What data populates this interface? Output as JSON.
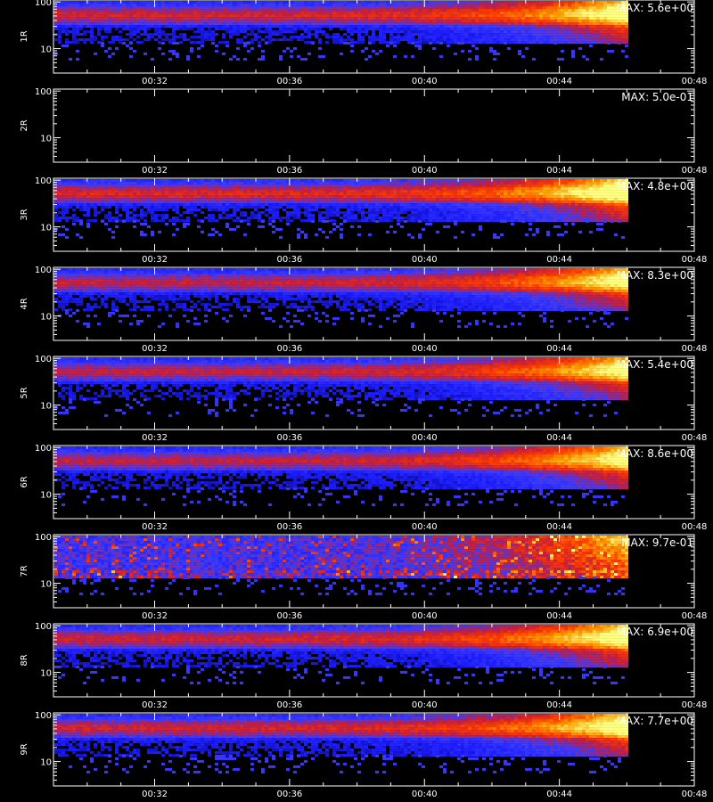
{
  "chart_data": {
    "type": "heatmap",
    "x_tick_labels": [
      "00:32",
      "00:36",
      "00:40",
      "00:44",
      "00:48"
    ],
    "x_range_minutes": [
      29,
      48
    ],
    "data_end_minutes": 46,
    "y_tick_labels": [
      "10",
      "100"
    ],
    "y_scale": "log",
    "y_range": [
      3,
      110
    ],
    "xlabel": "",
    "colormap": [
      "#000000",
      "#1a1aff",
      "#3c3cff",
      "#c81e3c",
      "#ff3c00",
      "#ffa000",
      "#ffff80"
    ],
    "panels": [
      {
        "channel": "1R",
        "max_label": "MAX: 5.6e+00",
        "empty": false,
        "intensity": 0.95
      },
      {
        "channel": "2R",
        "max_label": "MAX: 5.0e-01",
        "empty": true,
        "intensity": 0.0
      },
      {
        "channel": "3R",
        "max_label": "MAX: 4.8e+00",
        "empty": false,
        "intensity": 1.0
      },
      {
        "channel": "4R",
        "max_label": "MAX: 8.3e+00",
        "empty": false,
        "intensity": 0.9
      },
      {
        "channel": "5R",
        "max_label": "MAX: 5.4e+00",
        "empty": false,
        "intensity": 0.9
      },
      {
        "channel": "6R",
        "max_label": "MAX: 8.6e+00",
        "empty": false,
        "intensity": 0.9
      },
      {
        "channel": "7R",
        "max_label": "MAX: 9.7e-01",
        "empty": false,
        "intensity": 0.85,
        "noisy": true
      },
      {
        "channel": "8R",
        "max_label": "MAX: 6.9e+00",
        "empty": false,
        "intensity": 0.95
      },
      {
        "channel": "9R",
        "max_label": "MAX: 7.7e+00",
        "empty": false,
        "intensity": 0.95
      }
    ]
  }
}
